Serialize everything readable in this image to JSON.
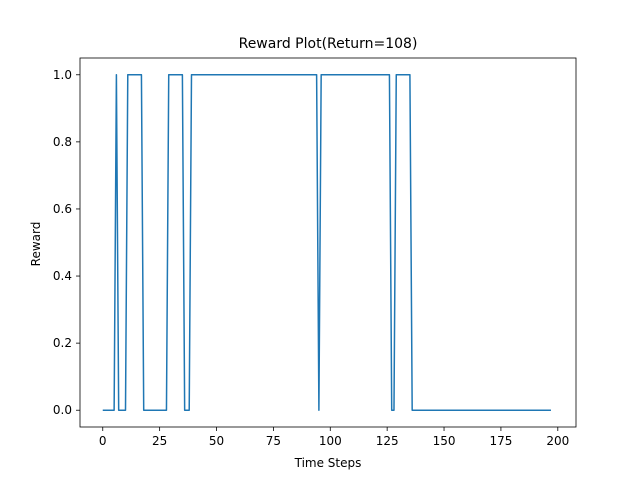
{
  "chart_data": {
    "type": "line",
    "title": "Reward Plot(Return=108)",
    "xlabel": "Time Steps",
    "ylabel": "Reward",
    "xlim": [
      -10,
      208
    ],
    "ylim": [
      -0.05,
      1.05
    ],
    "grid": false,
    "line_color": "#1f77b4",
    "xticks": [
      0,
      25,
      50,
      75,
      100,
      125,
      150,
      175,
      200
    ],
    "xtick_labels": [
      "0",
      "25",
      "50",
      "75",
      "100",
      "125",
      "150",
      "175",
      "200"
    ],
    "yticks": [
      0.0,
      0.2,
      0.4,
      0.6,
      0.8,
      1.0
    ],
    "ytick_labels": [
      "0.0",
      "0.2",
      "0.4",
      "0.6",
      "0.8",
      "1.0"
    ],
    "series": [
      {
        "reward_segments": [
          {
            "start": 0,
            "end": 5,
            "value": 0
          },
          {
            "start": 6,
            "end": 6,
            "value": 1
          },
          {
            "start": 7,
            "end": 10,
            "value": 0
          },
          {
            "start": 11,
            "end": 17,
            "value": 1
          },
          {
            "start": 18,
            "end": 28,
            "value": 0
          },
          {
            "start": 29,
            "end": 35,
            "value": 1
          },
          {
            "start": 36,
            "end": 38,
            "value": 0
          },
          {
            "start": 39,
            "end": 94,
            "value": 1
          },
          {
            "start": 95,
            "end": 95,
            "value": 0
          },
          {
            "start": 96,
            "end": 126,
            "value": 1
          },
          {
            "start": 127,
            "end": 128,
            "value": 0
          },
          {
            "start": 129,
            "end": 135,
            "value": 1
          },
          {
            "start": 136,
            "end": 197,
            "value": 0
          }
        ]
      }
    ]
  }
}
